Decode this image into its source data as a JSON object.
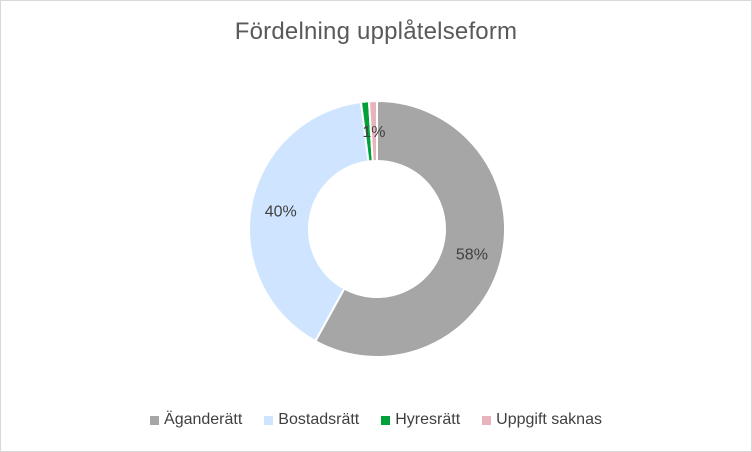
{
  "chart_data": {
    "type": "pie",
    "variant": "doughnut",
    "title": "Fördelning upplåtelseform",
    "categories": [
      "Äganderätt",
      "Bostadsrätt",
      "Hyresrätt",
      "Uppgift saknas"
    ],
    "values": [
      58,
      40,
      1,
      1
    ],
    "value_unit": "%",
    "data_labels": [
      "58%",
      "40%",
      "",
      "1%"
    ],
    "colors": [
      "#a6a6a6",
      "#cfe5ff",
      "#00a03a",
      "#e8b4bc"
    ],
    "legend_position": "bottom"
  }
}
